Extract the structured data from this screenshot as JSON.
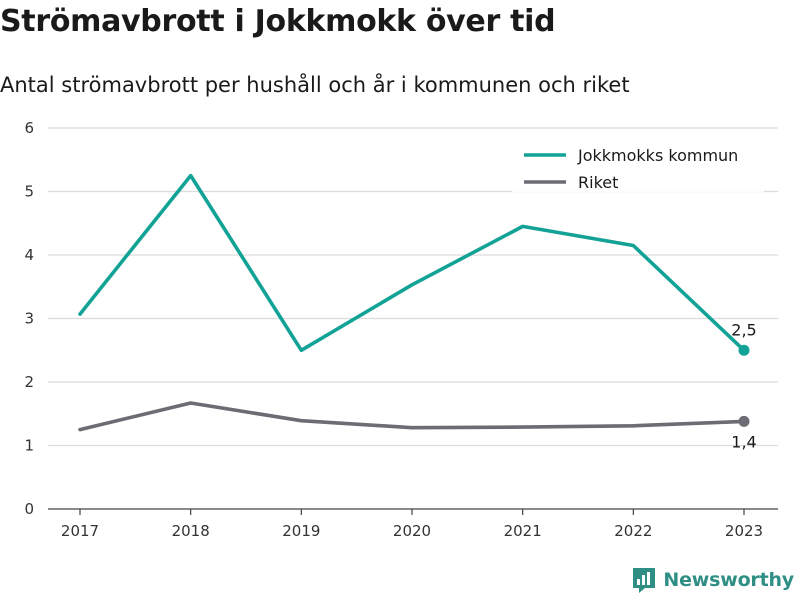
{
  "title": "Strömavbrott i Jokkmokk över tid",
  "subtitle": "Antal strömavbrott per hushåll och år i kommunen och riket",
  "brand": {
    "name": "Newsworthy",
    "color": "#2f8f85",
    "icon": "bar-chart-speech-bubble-icon"
  },
  "chart_data": {
    "type": "line",
    "x": [
      "2017",
      "2018",
      "2019",
      "2020",
      "2021",
      "2022",
      "2023"
    ],
    "series": [
      {
        "name": "Jokkmokks kommun",
        "color": "#12a396",
        "values": [
          3.07,
          5.25,
          2.5,
          3.53,
          4.45,
          4.15,
          2.5
        ],
        "end_label": "2,5"
      },
      {
        "name": "Riket",
        "color": "#6d6b73",
        "values": [
          1.25,
          1.67,
          1.39,
          1.28,
          1.29,
          1.31,
          1.38
        ],
        "end_label": "1,4"
      }
    ],
    "ylim": [
      0,
      6
    ],
    "yticks": [
      "0",
      "1",
      "2",
      "3",
      "4",
      "5",
      "6"
    ],
    "xlabel": "",
    "ylabel": "",
    "grid": true,
    "legend_position": "top-right"
  }
}
